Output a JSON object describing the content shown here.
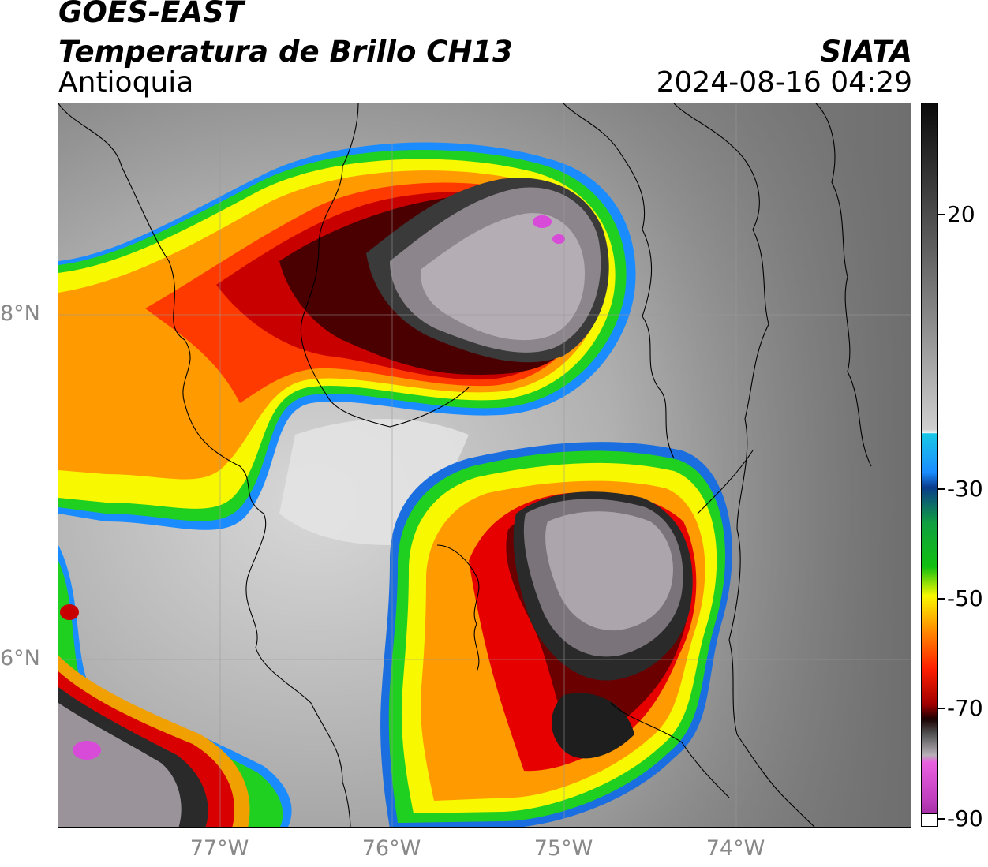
{
  "header": {
    "satellite": "GOES-EAST",
    "product": "Temperatura de Brillo CH13",
    "region": "Antioquia",
    "organization": "SIATA",
    "timestamp": "2024-08-16 04:29"
  },
  "axes": {
    "latitude_labels": [
      "8°N",
      "6°N"
    ],
    "longitude_labels": [
      "77°W",
      "76°W",
      "75°W",
      "74°W"
    ]
  },
  "colorbar": {
    "tick_labels": [
      "20",
      "-30",
      "-50",
      "-70",
      "-90"
    ],
    "colors": {
      "warm_top": "#0a0a0a",
      "warm_mid": "#7a7a7a",
      "warm_low": "#f2f2f2",
      "cyan": "#19c8e6",
      "blue": "#0a3c8c",
      "green": "#10c010",
      "yellow": "#f8f800",
      "orange": "#ff8800",
      "red": "#d80000",
      "dark_red": "#3a0000",
      "gray_cold": "#b8b0b8",
      "magenta": "#c040c0",
      "purple": "#8c1e8c"
    }
  }
}
